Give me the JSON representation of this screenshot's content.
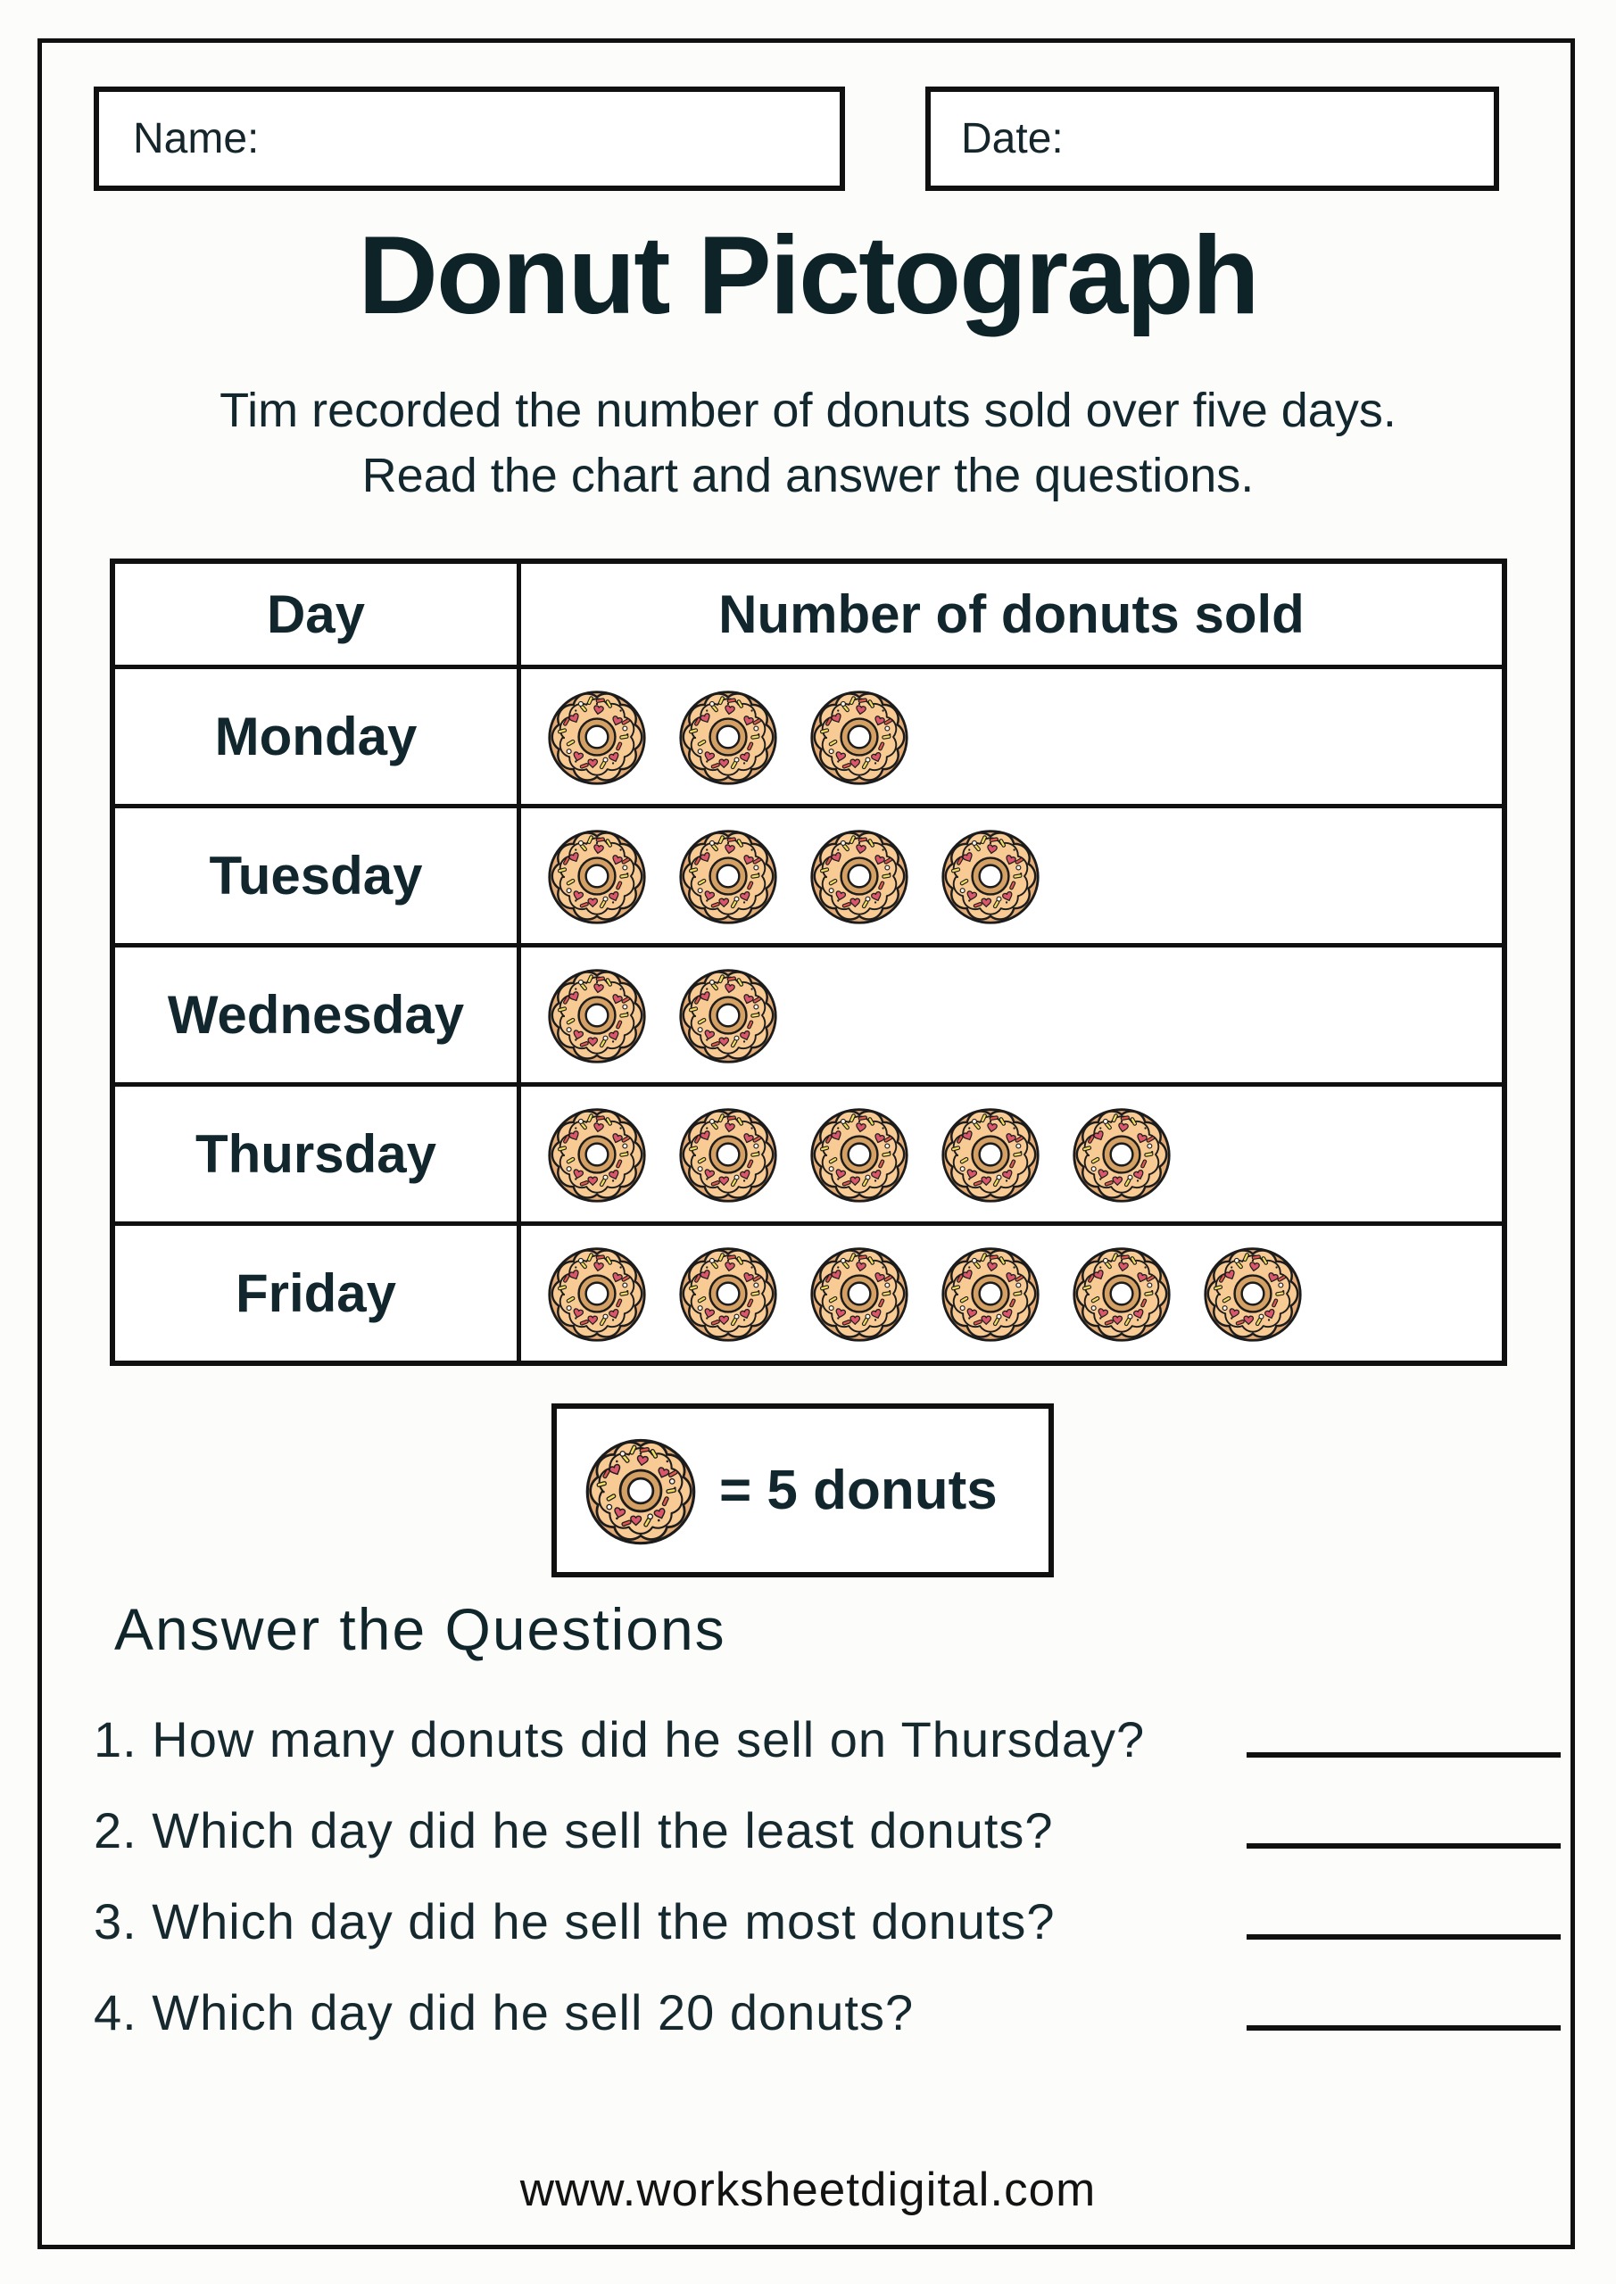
{
  "header": {
    "name_label": "Name:",
    "date_label": "Date:",
    "title": "Donut Pictograph",
    "subtitle_line1": "Tim recorded the number of donuts sold over five days.",
    "subtitle_line2": "Read the chart and answer the questions."
  },
  "chart_data": {
    "type": "pictograph",
    "title": "Donut Pictograph",
    "columns": [
      "Day",
      "Number of donuts sold"
    ],
    "categories": [
      "Monday",
      "Tuesday",
      "Wednesday",
      "Thursday",
      "Friday"
    ],
    "icon": "donut-icon",
    "icon_counts": [
      3,
      4,
      2,
      5,
      6
    ],
    "icon_value": 5,
    "values": [
      15,
      20,
      10,
      25,
      30
    ],
    "legend_text": "= 5 donuts",
    "legend_position": "below-table"
  },
  "questions": {
    "heading": "Answer the Questions",
    "items": [
      {
        "number": "1.",
        "text": "How many donuts did he sell on Thursday?"
      },
      {
        "number": "2.",
        "text": "Which day did he sell the least donuts?"
      },
      {
        "number": "3.",
        "text": "Which day did he sell the most donuts?"
      },
      {
        "number": "4.",
        "text": "Which day did he sell 20 donuts?"
      }
    ]
  },
  "footer": {
    "url": "www.worksheetdigital.com"
  },
  "colors": {
    "ink": "#11262b",
    "line": "#101010",
    "donut_dough": "#E5AC76",
    "donut_icing": "#F8CA94",
    "donut_hole_ring": "#D5A063",
    "sprinkle_red": "#D9566B",
    "sprinkle_orange_red": "#E05A50",
    "sprinkle_yellow": "#F3E05E",
    "background": "#FCFCFA"
  }
}
